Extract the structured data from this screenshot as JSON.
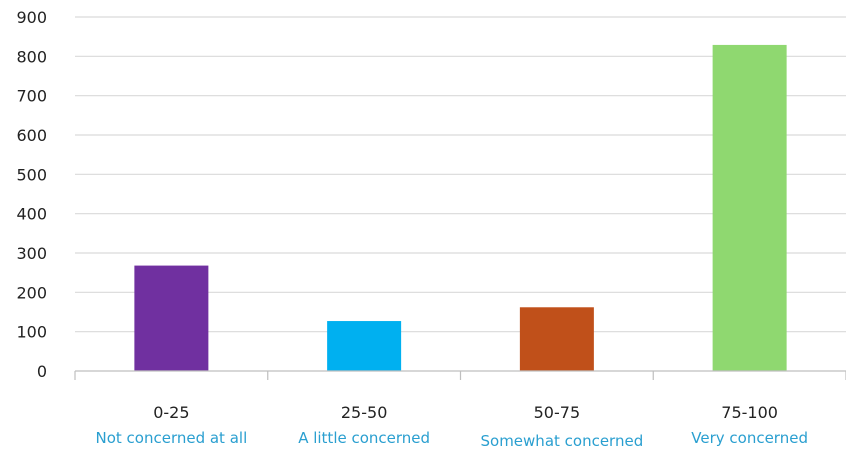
{
  "chart_data": {
    "type": "bar",
    "title": "",
    "xlabel": "",
    "ylabel": "",
    "categories": [
      "0-25",
      "25-50",
      "50-75",
      "75-100"
    ],
    "category_descriptions": [
      "Not concerned at all",
      "A little concerned",
      "Somewhat concerned",
      "Very concerned"
    ],
    "values": [
      268,
      127,
      162,
      829
    ],
    "colors": [
      "#7030a0",
      "#00b0f0",
      "#c0501a",
      "#8fd870"
    ],
    "ylim": [
      0,
      900
    ],
    "yticks": [
      0,
      100,
      200,
      300,
      400,
      500,
      600,
      700,
      800,
      900
    ],
    "grid": true,
    "legend": "none"
  }
}
